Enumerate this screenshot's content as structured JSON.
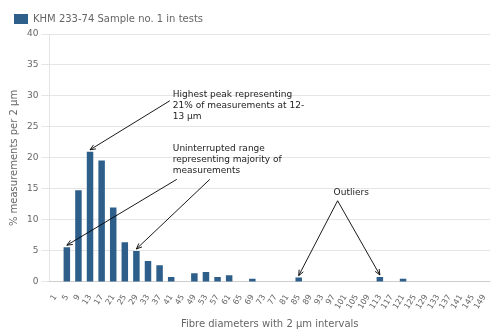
{
  "chart_data": {
    "type": "bar",
    "xlabel": "Fibre diameters with 2 μm intervals",
    "ylabel": "% measurements per 2 μm",
    "categories": [
      1,
      5,
      9,
      13,
      17,
      21,
      25,
      29,
      33,
      37,
      41,
      45,
      49,
      53,
      57,
      61,
      65,
      69,
      73,
      77,
      81,
      85,
      89,
      93,
      97,
      101,
      105,
      109,
      113,
      117,
      121,
      125,
      129,
      133,
      137,
      141,
      145,
      149
    ],
    "series": [
      {
        "name": "KHM 233-74 Sample no. 1 in tests",
        "color": "#2e5f8a",
        "values": [
          0.0,
          5.6,
          14.8,
          21.0,
          19.6,
          12.0,
          6.4,
          5.0,
          3.4,
          2.7,
          0.8,
          0.0,
          1.4,
          1.6,
          0.8,
          1.1,
          0.0,
          0.5,
          0.0,
          0.0,
          0.0,
          0.7,
          0.0,
          0.0,
          0.0,
          0.0,
          0.0,
          0.0,
          0.8,
          0.0,
          0.5,
          0.0,
          0.0,
          0.0,
          0.0,
          0.0,
          0.0,
          0.0
        ]
      }
    ],
    "ylim": [
      0,
      40
    ],
    "yticks": [
      0,
      5,
      10,
      15,
      20,
      25,
      30,
      35,
      40
    ],
    "grid": true,
    "legend": "upper left",
    "annotations": [
      {
        "text": "Highest peak representing\n21% of measurements at 12-\n13 μm",
        "x": [
          13
        ]
      },
      {
        "text": "Uninterrupted range\nrepresenting majority of\nmeasurements",
        "x": [
          5,
          29
        ]
      },
      {
        "text": "Outliers",
        "x": [
          85,
          113
        ]
      }
    ]
  }
}
